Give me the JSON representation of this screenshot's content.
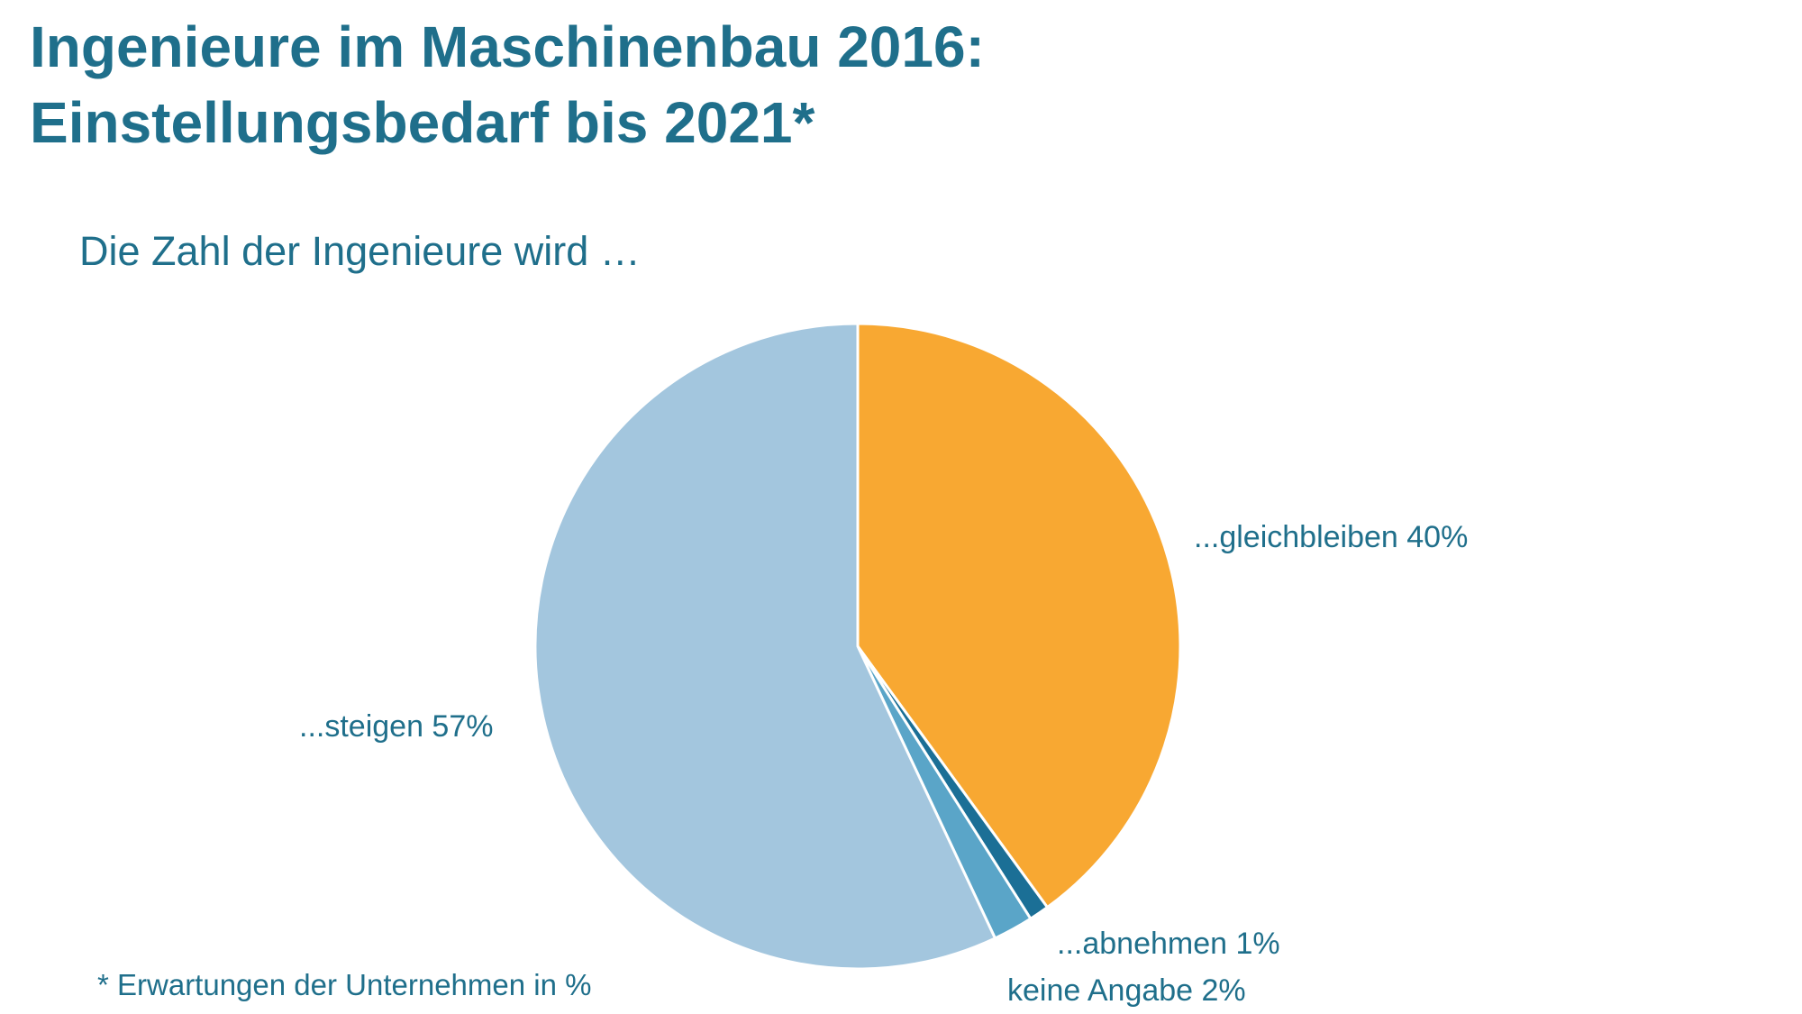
{
  "header": {
    "title_line1": "Ingenieure im Maschinenbau 2016:",
    "title_line2": "Einstellungsbedarf bis 2021*"
  },
  "chart_data": {
    "type": "pie",
    "subtitle": "Die Zahl der Ingenieure wird …",
    "footnote": "* Erwartungen der Unternehmen in %",
    "slices": [
      {
        "label": "...gleichbleiben",
        "value": 40,
        "value_text": "40%",
        "color": "#f8a832"
      },
      {
        "label": "...abnehmen",
        "value": 1,
        "value_text": "1%",
        "color": "#1b6f96"
      },
      {
        "label": "keine Angabe",
        "value": 2,
        "value_text": "2%",
        "color": "#5aa5c8"
      },
      {
        "label": "...steigen",
        "value": 57,
        "value_text": "57%",
        "color": "#a3c6de"
      }
    ]
  }
}
